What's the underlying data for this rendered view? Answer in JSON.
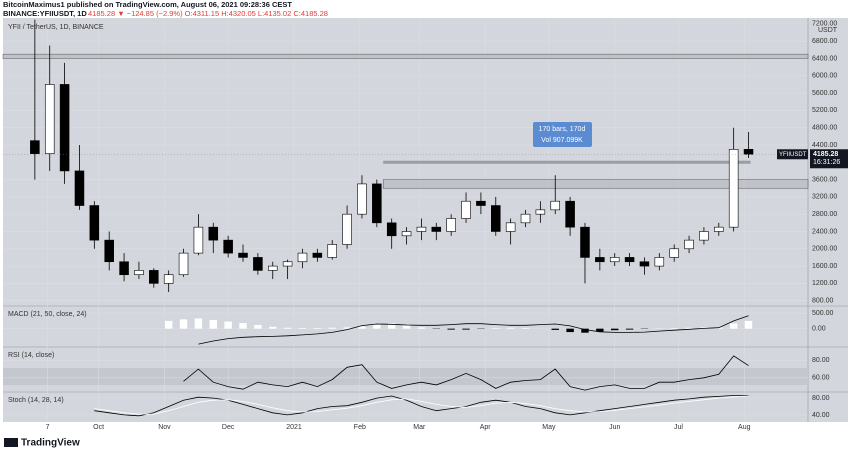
{
  "header": {
    "publisher": "BitcoinMaximus1 published on TradingView.com, August 06, 2021 09:28:36 CEST",
    "symbol": "BINANCE:YFIIUSDT, 1D",
    "quote": "4185.28 ▼ −124.85 (−2.9%) O:4311.15 H:4320.05 L:4135.02 C:4185.28"
  },
  "footer": {
    "logo": "TradingView"
  },
  "chart_data": [
    {
      "type": "candlestick",
      "title": "YFII / TetherUS, 1D, BINANCE",
      "up_color": "#ffffff",
      "down_color": "#000000",
      "x": [
        0,
        7,
        14,
        21,
        28,
        35,
        42,
        49,
        56,
        63,
        70,
        77,
        84,
        91,
        98,
        105,
        112,
        119,
        126,
        133,
        140,
        147,
        154,
        161,
        168,
        175,
        182,
        189,
        196,
        203,
        210,
        217,
        224,
        231,
        238,
        245,
        252,
        259,
        266,
        273,
        280,
        287,
        294,
        301,
        308,
        315,
        322,
        329,
        336
      ],
      "open": [
        4500,
        4200,
        5800,
        3800,
        3000,
        2200,
        1700,
        1400,
        1500,
        1200,
        1400,
        1900,
        2500,
        2200,
        1900,
        1800,
        1500,
        1600,
        1700,
        1900,
        1800,
        2100,
        2800,
        3500,
        2600,
        2300,
        2400,
        2500,
        2400,
        2700,
        3100,
        3000,
        2400,
        2600,
        2800,
        2900,
        3100,
        2500,
        1800,
        1700,
        1800,
        1700,
        1600,
        1800,
        2000,
        2200,
        2400,
        2500,
        4300
      ],
      "high": [
        7300,
        6700,
        6300,
        4400,
        3100,
        2400,
        1900,
        1700,
        1550,
        1500,
        2000,
        2800,
        2600,
        2300,
        2100,
        1900,
        1700,
        1750,
        2000,
        2000,
        2200,
        3000,
        3700,
        3600,
        2700,
        2500,
        2700,
        2600,
        2800,
        3300,
        3300,
        3200,
        2700,
        2900,
        3100,
        3700,
        3200,
        2600,
        2000,
        1900,
        1900,
        1800,
        1900,
        2100,
        2300,
        2500,
        2600,
        4800,
        4700
      ],
      "low": [
        3600,
        3800,
        3500,
        2900,
        2000,
        1500,
        1250,
        1300,
        1100,
        1000,
        1350,
        1850,
        1900,
        1800,
        1700,
        1400,
        1300,
        1300,
        1550,
        1700,
        1750,
        2000,
        2700,
        2500,
        2000,
        2100,
        2200,
        2200,
        2300,
        2600,
        2800,
        2300,
        2100,
        2500,
        2600,
        2800,
        2300,
        1200,
        1500,
        1600,
        1600,
        1400,
        1500,
        1700,
        1900,
        2100,
        2300,
        2400,
        4100
      ],
      "close": [
        4200,
        5800,
        3800,
        3000,
        2200,
        1700,
        1400,
        1500,
        1200,
        1400,
        1900,
        2500,
        2200,
        1900,
        1800,
        1500,
        1600,
        1700,
        1900,
        1800,
        2100,
        2800,
        3500,
        2600,
        2300,
        2400,
        2500,
        2400,
        2700,
        3100,
        3000,
        2400,
        2600,
        2800,
        2900,
        3100,
        2500,
        1800,
        1700,
        1800,
        1700,
        1600,
        1800,
        2000,
        2200,
        2400,
        2500,
        4300,
        4185.28
      ],
      "xlim": [
        -15,
        364
      ],
      "xticks": [
        {
          "value": 6,
          "label": "7"
        },
        {
          "value": 30,
          "label": "Oct"
        },
        {
          "value": 61,
          "label": "Nov"
        },
        {
          "value": 91,
          "label": "Dec"
        },
        {
          "value": 122,
          "label": "2021"
        },
        {
          "value": 153,
          "label": "Feb"
        },
        {
          "value": 181,
          "label": "Mar"
        },
        {
          "value": 212,
          "label": "Apr"
        },
        {
          "value": 242,
          "label": "May"
        },
        {
          "value": 273,
          "label": "Jun"
        },
        {
          "value": 303,
          "label": "Jul"
        },
        {
          "value": 334,
          "label": "Aug"
        }
      ],
      "ylim": [
        700,
        7290
      ],
      "yticks": [
        {
          "value": 800,
          "label": "800.00"
        },
        {
          "value": 1200,
          "label": "1200.00"
        },
        {
          "value": 1600,
          "label": "1600.00"
        },
        {
          "value": 2000,
          "label": "2000.00"
        },
        {
          "value": 2400,
          "label": "2400.00"
        },
        {
          "value": 2800,
          "label": "2800.00"
        },
        {
          "value": 3200,
          "label": "3200.00"
        },
        {
          "value": 3600,
          "label": "3600.00"
        },
        {
          "value": 4400,
          "label": "4400.00"
        },
        {
          "value": 4800,
          "label": "4800.00"
        },
        {
          "value": 5200,
          "label": "5200.00"
        },
        {
          "value": 5600,
          "label": "5600.00"
        },
        {
          "value": 6000,
          "label": "6000.00"
        },
        {
          "value": 6400,
          "label": "6400.00"
        },
        {
          "value": 6800,
          "label": "6800.00"
        },
        {
          "value": 7200,
          "label": "7200.00"
        }
      ],
      "y_unit": "USDT",
      "zones": [
        {
          "from": 6400,
          "to": 6500,
          "x_from": -15
        },
        {
          "from": 3400,
          "to": 3600,
          "x_from": 164
        }
      ],
      "levels": [
        {
          "value": 4000,
          "x_from": 164,
          "x_to": 337
        }
      ],
      "measure": {
        "lines": [
          "170 bars, 170d",
          "Vol 907.099K"
        ]
      },
      "last_price": {
        "symbol": "YFIIUSDT",
        "value": 4185.28,
        "countdown": "16:31:26"
      }
    },
    {
      "type": "macd",
      "title": "MACD (21, 50, close, 24)",
      "ylim": [
        -560,
        700
      ],
      "yticks": [
        {
          "value": 500,
          "label": "500.00"
        },
        {
          "value": 0,
          "label": "0.00"
        }
      ],
      "histogram": [
        null,
        null,
        null,
        null,
        null,
        null,
        null,
        null,
        null,
        250,
        300,
        330,
        280,
        230,
        180,
        120,
        60,
        30,
        20,
        20,
        30,
        40,
        70,
        130,
        180,
        120,
        40,
        -10,
        -30,
        -30,
        -10,
        20,
        30,
        20,
        0,
        -40,
        -110,
        -130,
        -90,
        -50,
        -30,
        -10,
        10,
        20,
        30,
        40,
        40,
        170,
        250
      ],
      "line": [
        null,
        null,
        null,
        null,
        null,
        null,
        null,
        null,
        null,
        null,
        null,
        -500,
        -400,
        -320,
        -280,
        -260,
        -250,
        -230,
        -200,
        -170,
        -120,
        -30,
        100,
        150,
        140,
        120,
        110,
        110,
        130,
        160,
        160,
        130,
        110,
        110,
        130,
        150,
        90,
        -30,
        -100,
        -120,
        -120,
        -110,
        -80,
        -50,
        -20,
        10,
        30,
        250,
        420
      ]
    },
    {
      "type": "rsi",
      "title": "RSI (14, close)",
      "ylim": [
        45,
        94
      ],
      "yticks": [
        {
          "value": 80,
          "label": "80.00"
        },
        {
          "value": 60,
          "label": "60.00"
        }
      ],
      "values": [
        null,
        null,
        null,
        null,
        null,
        null,
        null,
        null,
        null,
        null,
        56,
        70,
        55,
        50,
        47,
        55,
        52,
        50,
        55,
        50,
        58,
        72,
        75,
        55,
        48,
        52,
        55,
        52,
        58,
        65,
        58,
        48,
        55,
        57,
        58,
        70,
        50,
        46,
        50,
        52,
        48,
        48,
        55,
        55,
        58,
        60,
        64,
        85,
        74
      ]
    },
    {
      "type": "stoch",
      "title": "Stoch (14, 28, 14)",
      "ylim": [
        28,
        92
      ],
      "yticks": [
        {
          "value": 80,
          "label": "80.00"
        },
        {
          "value": 40,
          "label": "40.00"
        }
      ],
      "series": [
        {
          "color": "#000000",
          "values": [
            null,
            null,
            null,
            null,
            50,
            45,
            40,
            38,
            45,
            60,
            75,
            82,
            80,
            75,
            65,
            55,
            45,
            40,
            45,
            55,
            60,
            62,
            70,
            80,
            85,
            75,
            60,
            50,
            55,
            60,
            70,
            75,
            70,
            60,
            55,
            45,
            40,
            45,
            50,
            55,
            60,
            65,
            70,
            75,
            78,
            82,
            84,
            86,
            86
          ]
        },
        {
          "color": "#ffffff",
          "values": [
            null,
            null,
            null,
            null,
            55,
            50,
            45,
            42,
            42,
            50,
            60,
            70,
            75,
            76,
            72,
            65,
            57,
            50,
            47,
            48,
            52,
            56,
            62,
            70,
            76,
            78,
            72,
            65,
            60,
            58,
            62,
            68,
            70,
            67,
            62,
            55,
            50,
            47,
            48,
            51,
            55,
            59,
            63,
            68,
            72,
            76,
            80,
            83,
            85
          ]
        }
      ]
    }
  ]
}
